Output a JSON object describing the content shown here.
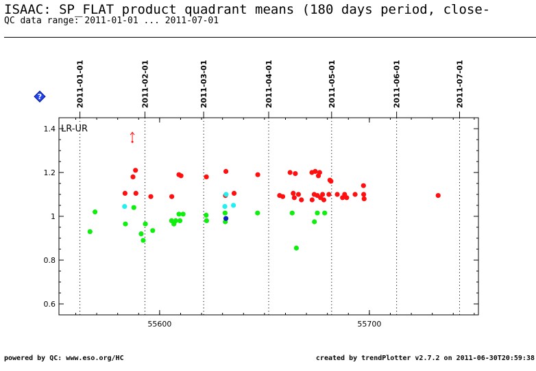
{
  "header": {
    "title": "ISAAC: SP_FLAT product quadrant means (180 days period, close-",
    "subtitle": "QC data range: 2011-01-01 ... 2011-07-01"
  },
  "footer": {
    "left": "powered by QC: www.eso.org/HC",
    "right": "created by trendPlotter v2.7.2 on 2011-06-30T20:59:38"
  },
  "icons": {
    "help": "help-diamond-icon"
  },
  "colors": {
    "red": "#ff1010",
    "green": "#10ee10",
    "cyan": "#20f0f0",
    "blue": "#1020c0"
  },
  "chart_data": {
    "type": "scatter",
    "title": "LR-UR",
    "xlim": [
      55552,
      55752
    ],
    "ylim": [
      0.55,
      1.45
    ],
    "x_ticks": [
      55600,
      55700
    ],
    "x_tick_labels": [
      "55600",
      "55700"
    ],
    "y_ticks": [
      0.6,
      0.8,
      1.0,
      1.2,
      1.4
    ],
    "y_tick_labels": [
      "0.6",
      "0.8",
      "1",
      "1.2",
      "1.4"
    ],
    "date_markers": [
      {
        "x": 55562,
        "label": "2011-01-01"
      },
      {
        "x": 55593,
        "label": "2011-02-01"
      },
      {
        "x": 55621,
        "label": "2011-03-01"
      },
      {
        "x": 55652,
        "label": "2011-04-01"
      },
      {
        "x": 55682,
        "label": "2011-05-01"
      },
      {
        "x": 55713,
        "label": "2011-06-01"
      },
      {
        "x": 55743,
        "label": "2011-07-01"
      }
    ],
    "outlier": {
      "x": 55587,
      "y": 1.34
    },
    "series": [
      {
        "color": "red",
        "points": [
          [
            55583.5,
            1.105
          ],
          [
            55587.3,
            1.18
          ],
          [
            55588.5,
            1.21
          ],
          [
            55588.7,
            1.105
          ],
          [
            55595.8,
            1.09
          ],
          [
            55605.8,
            1.09
          ],
          [
            55609.2,
            1.19
          ],
          [
            55610.2,
            1.185
          ],
          [
            55622.3,
            1.18
          ],
          [
            55631.6,
            1.205
          ],
          [
            55631.4,
            1.095
          ],
          [
            55635.5,
            1.105
          ],
          [
            55646.8,
            1.19
          ],
          [
            55657.2,
            1.095
          ],
          [
            55658.7,
            1.09
          ],
          [
            55662.2,
            1.2
          ],
          [
            55664.7,
            1.195
          ],
          [
            55663.7,
            1.105
          ],
          [
            55664.2,
            1.085
          ],
          [
            55666.2,
            1.1
          ],
          [
            55667.6,
            1.075
          ],
          [
            55672.6,
            1.2
          ],
          [
            55674.2,
            1.205
          ],
          [
            55676.3,
            1.2
          ],
          [
            55675.7,
            1.185
          ],
          [
            55673.7,
            1.1
          ],
          [
            55675.2,
            1.095
          ],
          [
            55676.7,
            1.085
          ],
          [
            55677.7,
            1.1
          ],
          [
            55678.3,
            1.075
          ],
          [
            55672.7,
            1.075
          ],
          [
            55681.2,
            1.165
          ],
          [
            55681.7,
            1.16
          ],
          [
            55680.7,
            1.1
          ],
          [
            55684.7,
            1.1
          ],
          [
            55687.2,
            1.085
          ],
          [
            55688.2,
            1.1
          ],
          [
            55689.2,
            1.085
          ],
          [
            55693.2,
            1.1
          ],
          [
            55697.2,
            1.14
          ],
          [
            55697.3,
            1.1
          ],
          [
            55697.5,
            1.08
          ],
          [
            55732.8,
            1.095
          ]
        ]
      },
      {
        "color": "green",
        "points": [
          [
            55566.8,
            0.93
          ],
          [
            55569.2,
            1.02
          ],
          [
            55583.7,
            0.965
          ],
          [
            55587.7,
            1.04
          ],
          [
            55591.2,
            0.92
          ],
          [
            55592.2,
            0.89
          ],
          [
            55593.2,
            0.965
          ],
          [
            55596.7,
            0.935
          ],
          [
            55605.7,
            0.98
          ],
          [
            55606.8,
            0.965
          ],
          [
            55607.7,
            0.98
          ],
          [
            55609.2,
            1.01
          ],
          [
            55609.7,
            0.98
          ],
          [
            55611.2,
            1.01
          ],
          [
            55622.2,
            1.005
          ],
          [
            55622.4,
            0.98
          ],
          [
            55631.2,
            1.015
          ],
          [
            55631.3,
            0.975
          ],
          [
            55646.7,
            1.015
          ],
          [
            55663.2,
            1.015
          ],
          [
            55665.2,
            0.855
          ],
          [
            55673.8,
            0.975
          ],
          [
            55675.2,
            1.015
          ],
          [
            55678.7,
            1.015
          ]
        ]
      },
      {
        "color": "cyan",
        "points": [
          [
            55583.3,
            1.045
          ],
          [
            55631.1,
            1.045
          ],
          [
            55631.7,
            1.1
          ],
          [
            55635.2,
            1.05
          ]
        ]
      },
      {
        "color": "blue",
        "points": [
          [
            55631.6,
            0.99
          ]
        ]
      }
    ]
  }
}
